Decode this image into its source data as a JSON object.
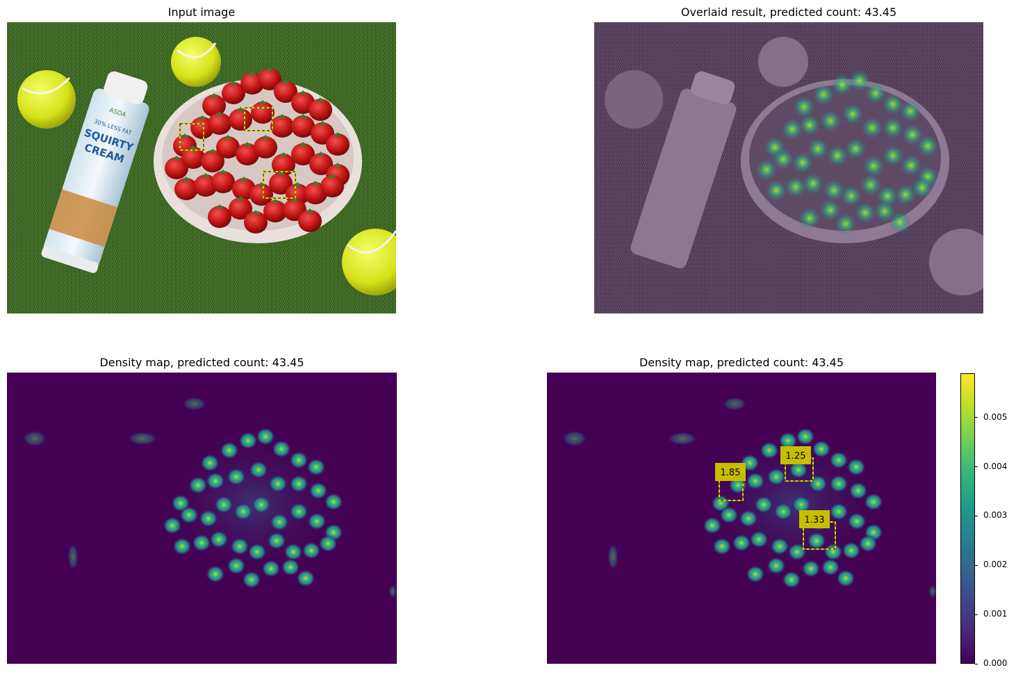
{
  "panels": {
    "input": {
      "title": "Input image"
    },
    "overlay": {
      "title": "Overlaid result, predicted count: 43.45"
    },
    "density": {
      "title": "Density map, predicted count: 43.45"
    },
    "density_boxes": {
      "title": "Density map, predicted count: 43.45"
    }
  },
  "photo_text": {
    "brand": "ASDA",
    "line1": "30% LESS FAT",
    "line2": "SQUIRTY",
    "line3": "CREAM"
  },
  "exemplar_labels": [
    "1.85",
    "1.25",
    "1.33"
  ],
  "colorbar": {
    "ticks": [
      "0.000",
      "0.001",
      "0.002",
      "0.003",
      "0.004",
      "0.005"
    ],
    "tick_values": [
      0,
      0.001,
      0.002,
      0.003,
      0.004,
      0.005
    ],
    "max": 0.0059,
    "colormap": "viridis"
  },
  "colors": {
    "grass": "#3f6a26",
    "density_background": "#440154",
    "box": "#e8e000",
    "label_bg": "#c8be00"
  }
}
